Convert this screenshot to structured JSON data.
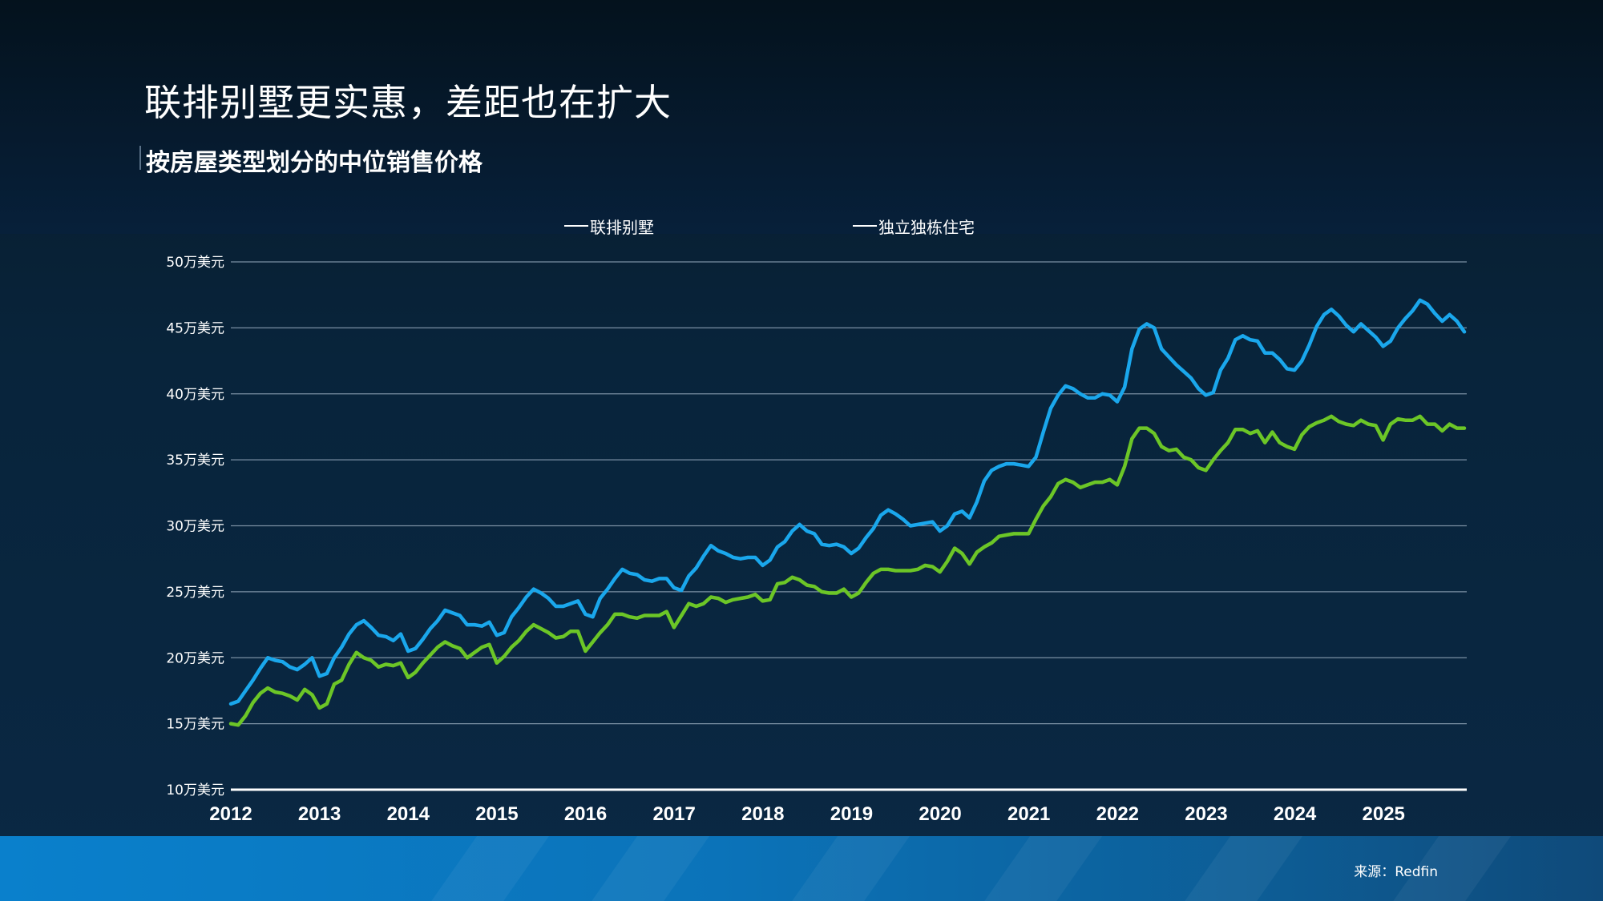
{
  "header": {
    "title": "联排别墅更实惠，差距也在扩大",
    "subtitle": "按房屋类型划分的中位销售价格"
  },
  "legend": {
    "townhouse": "联排别墅",
    "single_family": "独立独栋住宅"
  },
  "footer": {
    "source": "来源：Redfin"
  },
  "colors": {
    "townhouse": "#1aa7ec",
    "single_family": "#6cc627",
    "grid": "#7a8fa3",
    "axis": "#ffffff"
  },
  "chart_data": {
    "type": "line",
    "title": "联排别墅更实惠，差距也在扩大",
    "subtitle": "按房屋类型划分的中位销售价格",
    "xlabel": "",
    "ylabel": "",
    "x_start": 2012.0,
    "x_step": 0.0833,
    "xlim": [
      2012.0,
      2025.92
    ],
    "ylim": [
      100000,
      500000
    ],
    "y_ticks": [
      100000,
      150000,
      200000,
      250000,
      300000,
      350000,
      400000,
      450000,
      500000
    ],
    "y_tick_labels": [
      "10万美元",
      "15万美元",
      "20万美元",
      "25万美元",
      "30万美元",
      "35万美元",
      "40万美元",
      "45万美元",
      "50万美元"
    ],
    "x_ticks": [
      2012,
      2013,
      2014,
      2015,
      2016,
      2017,
      2018,
      2019,
      2020,
      2021,
      2022,
      2023,
      2024,
      2025
    ],
    "x_tick_labels": [
      "2012",
      "2013",
      "2014",
      "2015",
      "2016",
      "2017",
      "2018",
      "2019",
      "2020",
      "2021",
      "2022",
      "2023",
      "2024",
      "2025"
    ],
    "grid": true,
    "legend_position": "top",
    "source": "来源：Redfin",
    "series": [
      {
        "name": "联排别墅",
        "color": "#1aa7ec",
        "values": [
          165000,
          167000,
          175000,
          183000,
          192000,
          200000,
          198000,
          197000,
          193000,
          191000,
          195000,
          200000,
          186000,
          188000,
          200000,
          208000,
          218000,
          225000,
          228000,
          223000,
          217000,
          216000,
          213000,
          218000,
          205000,
          207000,
          214000,
          222000,
          228000,
          236000,
          234000,
          232000,
          225000,
          225000,
          224000,
          227000,
          217000,
          219000,
          231000,
          238000,
          246000,
          252000,
          249000,
          245000,
          239000,
          239000,
          241000,
          243000,
          233000,
          231000,
          245000,
          252000,
          260000,
          267000,
          264000,
          263000,
          259000,
          258000,
          260000,
          260000,
          253000,
          251000,
          262000,
          268000,
          277000,
          285000,
          281000,
          279000,
          276000,
          275000,
          276000,
          276000,
          270000,
          274000,
          284000,
          288000,
          296000,
          301000,
          296000,
          294000,
          286000,
          285000,
          286000,
          284000,
          279000,
          283000,
          291000,
          298000,
          308000,
          312000,
          309000,
          305000,
          300000,
          301000,
          302000,
          303000,
          296000,
          300000,
          309000,
          311000,
          306000,
          318000,
          334000,
          342000,
          345000,
          347000,
          347000,
          346000,
          345000,
          352000,
          371000,
          389000,
          399000,
          406000,
          404000,
          400000,
          397000,
          397000,
          400000,
          399000,
          394000,
          405000,
          434000,
          449000,
          453000,
          450000,
          434000,
          428000,
          422000,
          417000,
          412000,
          404000,
          399000,
          401000,
          418000,
          427000,
          441000,
          444000,
          441000,
          440000,
          431000,
          431000,
          426000,
          419000,
          418000,
          425000,
          437000,
          451000,
          460000,
          464000,
          459000,
          452000,
          447000,
          453000,
          448000,
          443000,
          436000,
          440000,
          450000,
          457000,
          463000,
          471000,
          468000,
          461000,
          455000,
          460000,
          455000,
          447000
        ]
      },
      {
        "name": "独立独栋住宅",
        "color": "#6cc627",
        "values": [
          150000,
          149000,
          156000,
          166000,
          173000,
          177000,
          174000,
          173000,
          171000,
          168000,
          176000,
          172000,
          162000,
          165000,
          180000,
          183000,
          195000,
          204000,
          200000,
          198000,
          193000,
          195000,
          194000,
          196000,
          185000,
          189000,
          196000,
          202000,
          208000,
          212000,
          209000,
          207000,
          200000,
          204000,
          208000,
          210000,
          196000,
          201000,
          208000,
          213000,
          220000,
          225000,
          222000,
          219000,
          215000,
          216000,
          220000,
          220000,
          205000,
          212000,
          219000,
          225000,
          233000,
          233000,
          231000,
          230000,
          232000,
          232000,
          232000,
          235000,
          223000,
          232000,
          241000,
          239000,
          241000,
          246000,
          245000,
          242000,
          244000,
          245000,
          246000,
          248000,
          243000,
          244000,
          256000,
          257000,
          261000,
          259000,
          255000,
          254000,
          250000,
          249000,
          249000,
          252000,
          246000,
          249000,
          257000,
          264000,
          267000,
          267000,
          266000,
          266000,
          266000,
          267000,
          270000,
          269000,
          265000,
          273000,
          283000,
          279000,
          271000,
          280000,
          284000,
          287000,
          292000,
          293000,
          294000,
          294000,
          294000,
          305000,
          315000,
          322000,
          332000,
          335000,
          333000,
          329000,
          331000,
          333000,
          333000,
          335000,
          331000,
          345000,
          366000,
          374000,
          374000,
          370000,
          360000,
          357000,
          358000,
          352000,
          350000,
          344000,
          342000,
          350000,
          357000,
          363000,
          373000,
          373000,
          370000,
          372000,
          363000,
          371000,
          363000,
          360000,
          358000,
          369000,
          375000,
          378000,
          380000,
          383000,
          379000,
          377000,
          376000,
          380000,
          377000,
          376000,
          365000,
          377000,
          381000,
          380000,
          380000,
          383000,
          377000,
          377000,
          372000,
          377000,
          374000,
          374000
        ]
      }
    ]
  }
}
